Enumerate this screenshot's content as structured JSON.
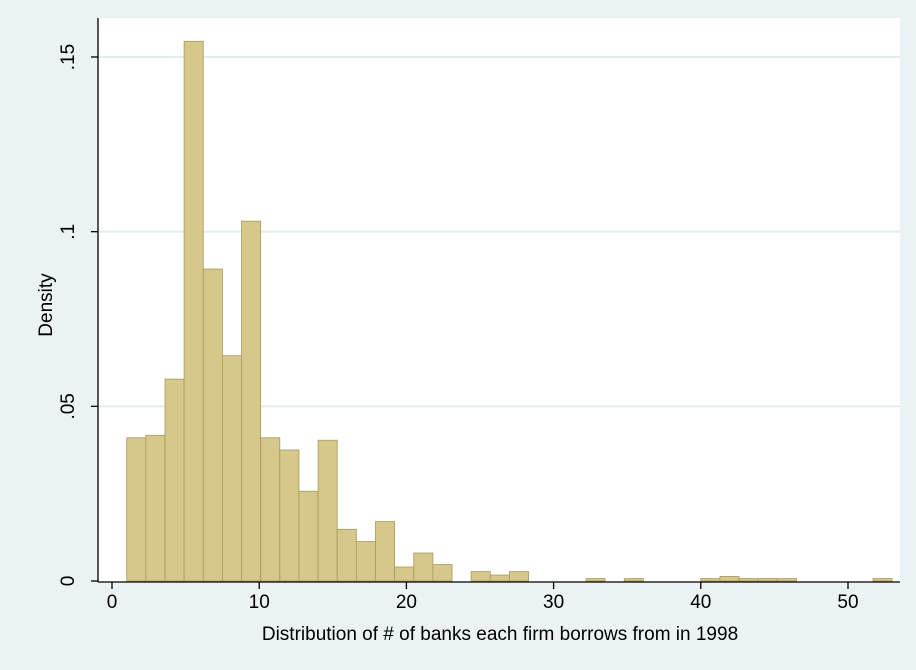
{
  "chart_data": {
    "type": "bar",
    "subtype": "histogram",
    "xlabel": "Distribution of # of banks each firm borrows from in 1998",
    "ylabel": "Density",
    "xlim": [
      0,
      54
    ],
    "ylim": [
      0,
      0.16
    ],
    "x_ticks": [
      0,
      10,
      20,
      30,
      40,
      50
    ],
    "x_tick_labels": [
      "0",
      "10",
      "20",
      "30",
      "40",
      "50"
    ],
    "y_ticks": [
      0,
      0.05,
      0.1,
      0.15
    ],
    "y_tick_labels": [
      "0",
      ".05",
      ".1",
      ".15"
    ],
    "grid": "horizontal",
    "bin_width": 1.3,
    "bins": [
      {
        "x0": 1.0,
        "x1": 2.3,
        "value": 0.041
      },
      {
        "x0": 2.3,
        "x1": 3.6,
        "value": 0.0417
      },
      {
        "x0": 3.6,
        "x1": 4.9,
        "value": 0.0578
      },
      {
        "x0": 4.9,
        "x1": 6.2,
        "value": 0.1545
      },
      {
        "x0": 6.2,
        "x1": 7.5,
        "value": 0.0893
      },
      {
        "x0": 7.5,
        "x1": 8.8,
        "value": 0.0645
      },
      {
        "x0": 8.8,
        "x1": 10.1,
        "value": 0.103
      },
      {
        "x0": 10.1,
        "x1": 11.4,
        "value": 0.041
      },
      {
        "x0": 11.4,
        "x1": 12.7,
        "value": 0.0375
      },
      {
        "x0": 12.7,
        "x1": 14.0,
        "value": 0.0257
      },
      {
        "x0": 14.0,
        "x1": 15.3,
        "value": 0.0403
      },
      {
        "x0": 15.3,
        "x1": 16.6,
        "value": 0.0148
      },
      {
        "x0": 16.6,
        "x1": 17.9,
        "value": 0.0113
      },
      {
        "x0": 17.9,
        "x1": 19.2,
        "value": 0.017
      },
      {
        "x0": 19.2,
        "x1": 20.5,
        "value": 0.004
      },
      {
        "x0": 20.5,
        "x1": 21.8,
        "value": 0.008
      },
      {
        "x0": 21.8,
        "x1": 23.1,
        "value": 0.0047
      },
      {
        "x0": 24.4,
        "x1": 25.7,
        "value": 0.0027
      },
      {
        "x0": 25.7,
        "x1": 27.0,
        "value": 0.0017
      },
      {
        "x0": 27.0,
        "x1": 28.3,
        "value": 0.0027
      },
      {
        "x0": 32.2,
        "x1": 33.5,
        "value": 0.0007
      },
      {
        "x0": 34.8,
        "x1": 36.1,
        "value": 0.0007
      },
      {
        "x0": 40.0,
        "x1": 41.3,
        "value": 0.0007
      },
      {
        "x0": 41.3,
        "x1": 42.6,
        "value": 0.0013
      },
      {
        "x0": 42.6,
        "x1": 43.9,
        "value": 0.0007
      },
      {
        "x0": 43.9,
        "x1": 45.2,
        "value": 0.0007
      },
      {
        "x0": 45.2,
        "x1": 46.5,
        "value": 0.0007
      },
      {
        "x0": 51.7,
        "x1": 53.0,
        "value": 0.0007
      }
    ],
    "colors": {
      "background": "#eaf2f3",
      "plot_background": "#ffffff",
      "bar_fill": "#d6c78a",
      "bar_edge": "#a8995c",
      "grid": "#e4eeef",
      "axis": "#000000"
    }
  }
}
